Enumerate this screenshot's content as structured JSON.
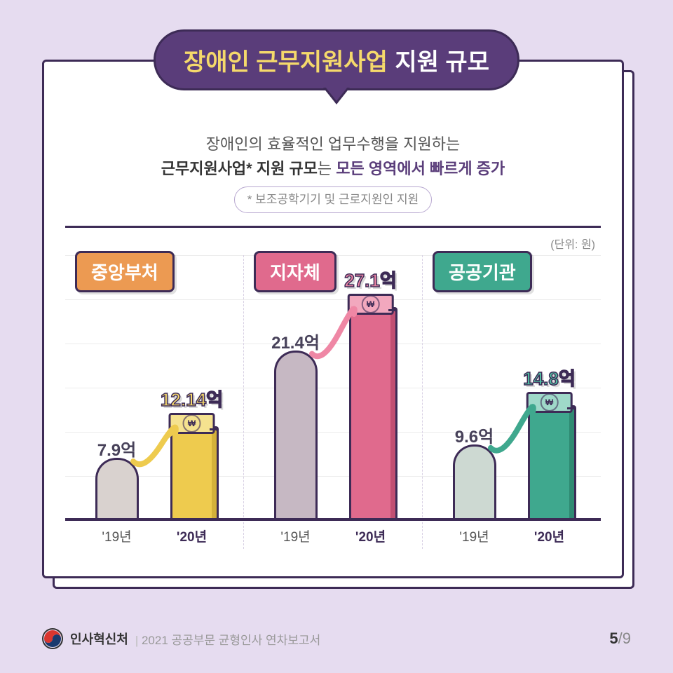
{
  "title": {
    "main": "장애인 근무지원사업",
    "sub": "지원 규모"
  },
  "subtitle": {
    "line1_plain": "장애인의 효율적인 업무수행을 지원하는",
    "line2_bold": "근무지원사업* 지원 규모",
    "line2_plain": "는 ",
    "line2_purple": "모든 영역에서 빠르게 증가",
    "footnote": "* 보조공학기기 및 근로지원인 지원"
  },
  "unit_label": "(단위: 원)",
  "chart": {
    "ymax": 30,
    "x_labels": {
      "y19": "'19년",
      "y20": "'20년"
    },
    "groups": [
      {
        "name": "중앙부처",
        "label_bg": "#ec9a52",
        "y19": {
          "value": 7.9,
          "label": "7.9억",
          "color": "#d9d2cf"
        },
        "y20": {
          "value": 12.14,
          "label": "12.14억",
          "color": "#eecb4e",
          "side": "#d4b13a",
          "val_color": "#f5d96b",
          "bill_bg": "#f5e28f"
        },
        "arrow_color": "#eecb4e"
      },
      {
        "name": "지자체",
        "label_bg": "#e06a8d",
        "y19": {
          "value": 21.4,
          "label": "21.4억",
          "color": "#c6b8c3"
        },
        "y20": {
          "value": 27.1,
          "label": "27.1억",
          "color": "#e06a8d",
          "side": "#c14f72",
          "val_color": "#ef87a5",
          "bill_bg": "#f2a8be"
        },
        "arrow_color": "#ef87a5"
      },
      {
        "name": "공공기관",
        "label_bg": "#3fa88e",
        "y19": {
          "value": 9.6,
          "label": "9.6억",
          "color": "#cdd9d2"
        },
        "y20": {
          "value": 14.8,
          "label": "14.8억",
          "color": "#3fa88e",
          "side": "#2f8a72",
          "val_color": "#4fbfa1",
          "bill_bg": "#9fd9c9"
        },
        "arrow_color": "#3fa88e"
      }
    ]
  },
  "footer": {
    "org": "인사혁신처",
    "sub": "2021 공공부문 균형인사 연차보고서",
    "page_cur": "5",
    "page_total": "/9"
  }
}
